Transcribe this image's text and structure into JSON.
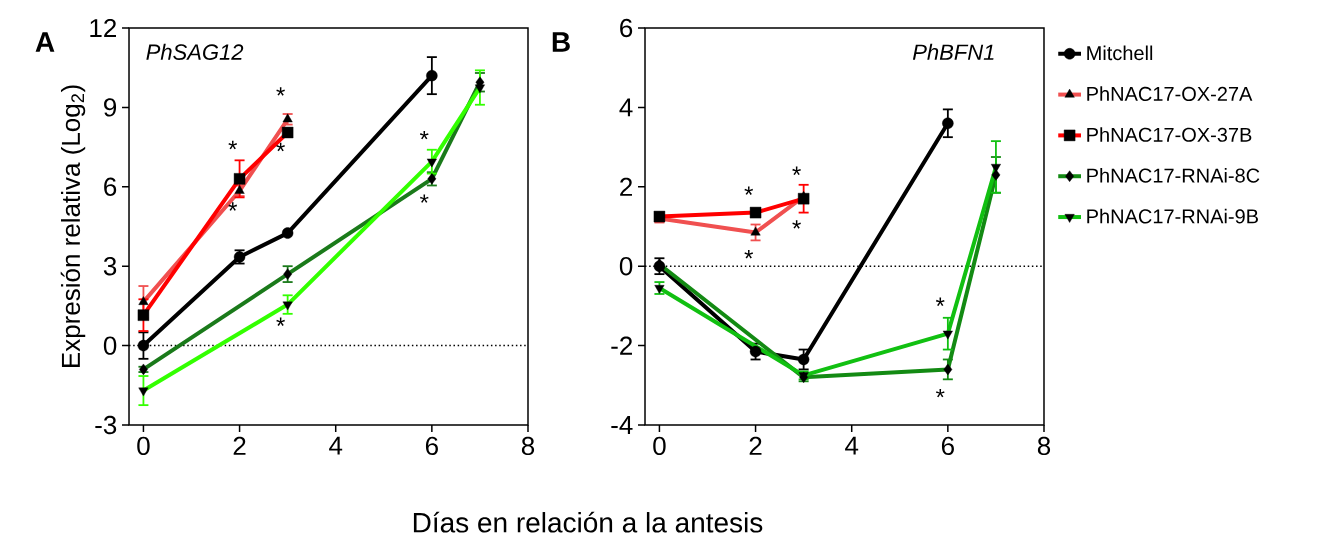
{
  "chart_data": [
    {
      "type": "line",
      "title": "A",
      "subtitle": "PhSAG12",
      "xlabel": "Días en relación a la antesis",
      "ylabel": "Expresión relativa (Log$_{2}$)",
      "xlim": [
        -0.3,
        8
      ],
      "ylim": [
        -3,
        12
      ],
      "xticks": [
        0,
        2,
        4,
        6,
        8
      ],
      "yticks": [
        -3,
        0,
        3,
        6,
        9,
        12
      ],
      "grid": false,
      "legend": false,
      "ref_lines": [
        {
          "axis": "y",
          "value": 0,
          "line_style": "dotted",
          "color": "#000000"
        }
      ],
      "series": [
        {
          "color": "#000000",
          "marker": "circle",
          "x": [
            0,
            2,
            3,
            6
          ],
          "values": [
            0,
            3.35,
            4.25,
            10.2
          ],
          "errors": [
            0.5,
            0.25,
            null,
            0.7
          ]
        },
        {
          "color": "#f05050",
          "marker": "triangle",
          "x": [
            0,
            2,
            3
          ],
          "values": [
            1.65,
            5.85,
            8.55
          ],
          "errors": [
            0.6,
            0.2,
            0.2
          ]
        },
        {
          "color": "#ff0000",
          "marker": "square",
          "x": [
            0,
            2,
            3
          ],
          "values": [
            1.15,
            6.3,
            8.05
          ],
          "errors": [
            0.6,
            0.7,
            null
          ]
        },
        {
          "color": "#1a7a1a",
          "marker": "diamond",
          "x": [
            0,
            3,
            6,
            7
          ],
          "values": [
            -0.9,
            2.7,
            6.3,
            9.95
          ],
          "errors": [
            0.1,
            0.3,
            0.25,
            0.35
          ]
        },
        {
          "color": "#33ff00",
          "marker": "triangle-down",
          "x": [
            0,
            3,
            6,
            7
          ],
          "values": [
            -1.7,
            1.55,
            6.95,
            9.75
          ],
          "errors": [
            0.55,
            0.35,
            0.45,
            0.65
          ]
        }
      ],
      "annotations": [
        "*",
        "*",
        "*",
        "*",
        "*",
        "*",
        "*"
      ]
    },
    {
      "type": "line",
      "title": "B",
      "subtitle": "PhBFN1",
      "xlim": [
        -0.3,
        8
      ],
      "ylim": [
        -4,
        6
      ],
      "xticks": [
        0,
        2,
        4,
        6,
        8
      ],
      "yticks": [
        -4,
        -2,
        0,
        2,
        4,
        6
      ],
      "grid": false,
      "legend": "right",
      "ref_lines": [
        {
          "axis": "y",
          "value": 0,
          "line_style": "dotted",
          "color": "#000000"
        }
      ],
      "series": [
        {
          "name": "Mitchell",
          "color": "#000000",
          "marker": "circle",
          "x": [
            0,
            2,
            3,
            6
          ],
          "values": [
            0.0,
            -2.15,
            -2.35,
            3.6
          ],
          "errors": [
            0.2,
            0.2,
            0.25,
            0.35
          ]
        },
        {
          "name": "PhNAC17-OX-27A",
          "color": "#f05050",
          "marker": "triangle",
          "x": [
            0,
            2,
            3
          ],
          "values": [
            1.2,
            0.85,
            1.75
          ],
          "errors": [
            0.1,
            0.2,
            null
          ]
        },
        {
          "name": "PhNAC17-OX-37B",
          "color": "#ff0000",
          "marker": "square",
          "x": [
            0,
            2,
            3
          ],
          "values": [
            1.25,
            1.35,
            1.7
          ],
          "errors": [
            null,
            null,
            0.35
          ]
        },
        {
          "name": "PhNAC17-RNAi-8C",
          "color": "#138a13",
          "marker": "diamond",
          "x": [
            0,
            3,
            6,
            7
          ],
          "values": [
            0.05,
            -2.8,
            -2.6,
            2.3
          ],
          "errors": [
            null,
            0.1,
            0.25,
            0.45
          ]
        },
        {
          "name": "PhNAC17-RNAi-9B",
          "color": "#11c011",
          "marker": "triangle-down",
          "x": [
            0,
            3,
            6,
            7
          ],
          "values": [
            -0.55,
            -2.75,
            -1.7,
            2.5
          ],
          "errors": [
            0.15,
            0.1,
            0.4,
            0.65
          ]
        }
      ],
      "annotations": [
        "*",
        "*",
        "*",
        "*",
        "*",
        "*"
      ]
    }
  ]
}
